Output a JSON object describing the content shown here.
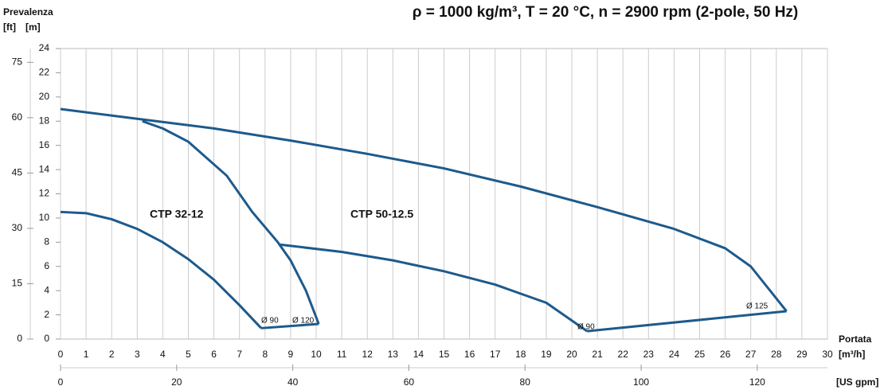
{
  "chart_data": {
    "type": "line",
    "title": "ρ = 1000 kg/m³, T = 20 °C, n = 2900 rpm (2-pole, 50 Hz)",
    "y_label": "Prevalenza",
    "y_unit": "[m]",
    "y2_unit": "[ft]",
    "x_label": "Portata",
    "x_unit": "[m³/h]",
    "x2_unit": "[US gpm]",
    "xlim": [
      0,
      30
    ],
    "xticks": [
      0,
      1,
      2,
      3,
      4,
      5,
      6,
      7,
      8,
      9,
      10,
      11,
      12,
      13,
      14,
      15,
      16,
      17,
      18,
      19,
      20,
      21,
      22,
      23,
      24,
      25,
      26,
      27,
      28,
      29,
      30
    ],
    "ylim": [
      0,
      24
    ],
    "yticks": [
      0,
      2,
      4,
      6,
      8,
      10,
      12,
      14,
      16,
      18,
      20,
      22,
      24
    ],
    "y2lim": [
      0,
      78.74
    ],
    "y2ticks": [
      0,
      15,
      30,
      45,
      60,
      75
    ],
    "x2lim": [
      0,
      132.09
    ],
    "x2ticks": [
      0,
      20,
      40,
      60,
      80,
      100,
      120
    ],
    "grid": true,
    "series": [
      {
        "color": "#1d5a8c",
        "x": [
          0,
          1,
          2,
          3,
          4,
          5,
          6,
          7,
          7.85
        ],
        "values": [
          10.5,
          10.4,
          9.9,
          9.1,
          8.0,
          6.6,
          4.9,
          2.8,
          0.9
        ]
      },
      {
        "color": "#1d5a8c",
        "x": [
          7.85,
          10.1
        ],
        "values": [
          0.9,
          1.25
        ]
      },
      {
        "color": "#1d5a8c",
        "x": [
          10.1,
          9.6,
          9,
          8.5,
          7.5,
          6.5,
          5,
          4,
          3.2
        ],
        "values": [
          1.25,
          4,
          6.5,
          8,
          10.5,
          13.5,
          16.3,
          17.4,
          18.0
        ]
      },
      {
        "color": "#1d5a8c",
        "x": [
          0,
          3,
          6,
          9,
          12,
          15,
          18,
          21,
          24,
          26,
          27,
          28.4
        ],
        "values": [
          19,
          18.2,
          17.4,
          16.4,
          15.3,
          14.1,
          12.6,
          10.9,
          9.1,
          7.5,
          6.0,
          2.3
        ]
      },
      {
        "color": "#1d5a8c",
        "x": [
          20.6,
          28.4
        ],
        "values": [
          0.65,
          2.3
        ]
      },
      {
        "color": "#1d5a8c",
        "x": [
          8.6,
          11,
          13,
          15,
          17,
          19,
          20.6
        ],
        "values": [
          7.8,
          7.2,
          6.5,
          5.6,
          4.5,
          3.0,
          0.65
        ]
      }
    ],
    "annotations": [
      "CTP 32-12",
      "CTP 50-12.5",
      "Ø 90",
      "Ø 120",
      "Ø 90",
      "Ø 125"
    ]
  }
}
